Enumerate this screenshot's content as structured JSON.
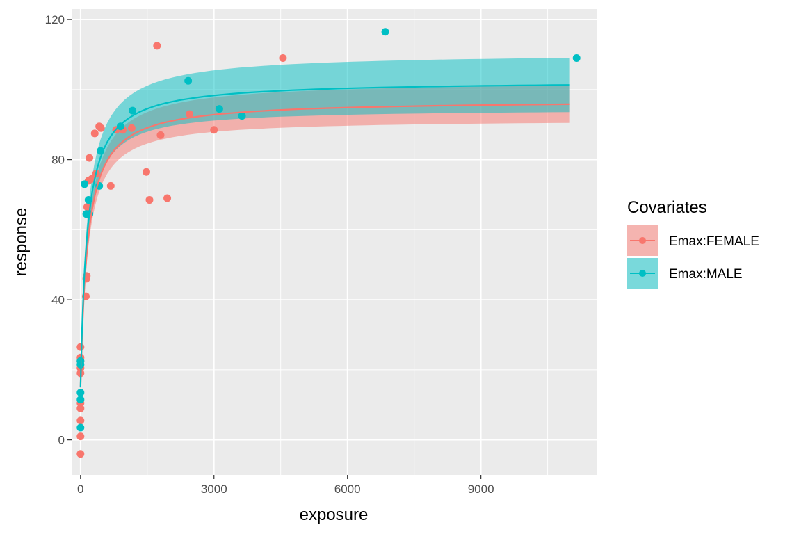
{
  "chart_data": {
    "type": "scatter",
    "xlabel": "exposure",
    "ylabel": "response",
    "xlim": [
      -200,
      11600
    ],
    "ylim": [
      -10,
      123
    ],
    "x_ticks": [
      0,
      3000,
      6000,
      9000
    ],
    "y_ticks": [
      0,
      40,
      80,
      120
    ],
    "x_tick_labels": [
      "0",
      "3000",
      "6000",
      "9000"
    ],
    "y_tick_labels": [
      "0",
      "40",
      "80",
      "120"
    ],
    "grid": true,
    "legend": {
      "title": "Covariates",
      "placement": "right",
      "entries": [
        "Emax:FEMALE",
        "Emax:MALE"
      ]
    },
    "series": [
      {
        "name": "Emax:FEMALE",
        "color": "#F8766D",
        "fit": {
          "e0": 15,
          "emax": 82,
          "ec50": 160,
          "xmax": 11000
        },
        "band_halfwidth": {
          "near": 2,
          "far": 5.5
        },
        "points": [
          [
            0,
            -4
          ],
          [
            0,
            1
          ],
          [
            0,
            5.5
          ],
          [
            0,
            9
          ],
          [
            0,
            10.5
          ],
          [
            0,
            19
          ],
          [
            0,
            20.5
          ],
          [
            0,
            22.5
          ],
          [
            0,
            23.5
          ],
          [
            0,
            26.5
          ],
          [
            120,
            41
          ],
          [
            130,
            46
          ],
          [
            140,
            46.8
          ],
          [
            150,
            66.5
          ],
          [
            180,
            74
          ],
          [
            200,
            80.5
          ],
          [
            250,
            74.5
          ],
          [
            320,
            87.5
          ],
          [
            350,
            76
          ],
          [
            420,
            89.5
          ],
          [
            460,
            89
          ],
          [
            680,
            72.5
          ],
          [
            800,
            88.5
          ],
          [
            950,
            88.5
          ],
          [
            1150,
            89
          ],
          [
            1480,
            76.5
          ],
          [
            1550,
            68.5
          ],
          [
            1720,
            112.5
          ],
          [
            1800,
            87
          ],
          [
            1950,
            69
          ],
          [
            2450,
            93
          ],
          [
            3000,
            88.5
          ],
          [
            4550,
            109
          ]
        ]
      },
      {
        "name": "Emax:MALE",
        "color": "#00BFC4",
        "fit": {
          "e0": 15,
          "emax": 87.5,
          "ec50": 150,
          "xmax": 11000
        },
        "band_halfwidth": {
          "near": 3,
          "far": 8
        },
        "points": [
          [
            0,
            3.5
          ],
          [
            0,
            11.5
          ],
          [
            0,
            13.5
          ],
          [
            0,
            21.5
          ],
          [
            0,
            22.5
          ],
          [
            90,
            73
          ],
          [
            130,
            64.5
          ],
          [
            180,
            68.5
          ],
          [
            200,
            64.5
          ],
          [
            420,
            72.5
          ],
          [
            450,
            82.5
          ],
          [
            900,
            89.5
          ],
          [
            1170,
            94
          ],
          [
            2420,
            102.5
          ],
          [
            3120,
            94.5
          ],
          [
            3630,
            92.5
          ],
          [
            6850,
            116.5
          ],
          [
            11150,
            109
          ]
        ]
      }
    ]
  }
}
